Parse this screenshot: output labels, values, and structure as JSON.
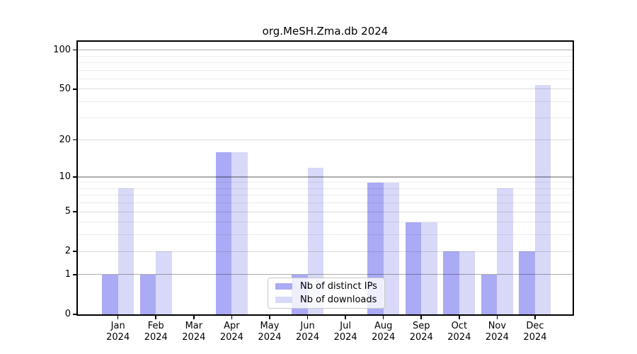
{
  "chart_data": {
    "type": "bar",
    "title": "org.MeSH.Zma.db 2024",
    "categories": [
      "Jan 2024",
      "Feb 2024",
      "Mar 2024",
      "Apr 2024",
      "May 2024",
      "Jun 2024",
      "Jul 2024",
      "Aug 2024",
      "Sep 2024",
      "Oct 2024",
      "Nov 2024",
      "Dec 2024"
    ],
    "series": [
      {
        "name": "Nb of distinct IPs",
        "color": "#aaaaf5",
        "values": [
          1,
          1,
          0,
          16,
          0,
          1,
          0,
          9,
          4,
          2,
          1,
          2
        ]
      },
      {
        "name": "Nb of downloads",
        "color": "#d8d8f8",
        "values": [
          8,
          2,
          0,
          16,
          0,
          12,
          0,
          9,
          4,
          2,
          8,
          54
        ]
      }
    ],
    "yscale": "log1p",
    "yticks": [
      0,
      1,
      2,
      5,
      10,
      20,
      50,
      100
    ],
    "ylim": [
      0,
      100
    ],
    "grid": "on",
    "legend_position": "bottom-center",
    "axis_color": "#000000",
    "grid_major_color": "#aeaeae",
    "grid_minor_color": "#ededed"
  }
}
